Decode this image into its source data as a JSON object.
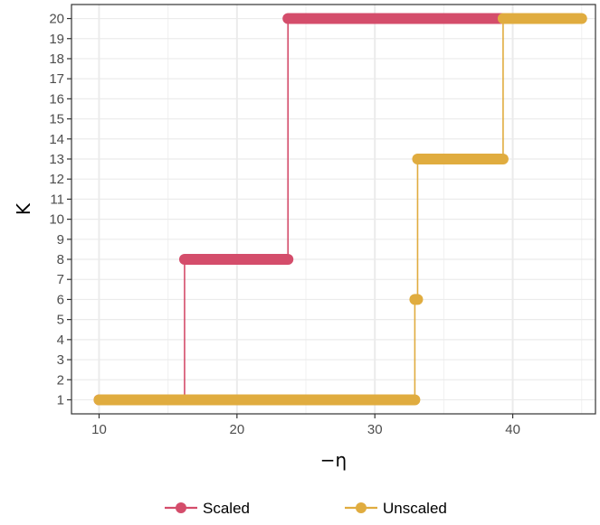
{
  "chart_data": {
    "type": "line",
    "step": true,
    "xlabel": "−η",
    "ylabel": "K",
    "xlim": [
      8,
      46
    ],
    "ylim": [
      0.3,
      20.7
    ],
    "xticks": [
      "10",
      "20",
      "30",
      "40"
    ],
    "yticks": [
      "1",
      "2",
      "3",
      "4",
      "5",
      "6",
      "7",
      "8",
      "9",
      "10",
      "11",
      "12",
      "13",
      "14",
      "15",
      "16",
      "17",
      "18",
      "19",
      "20"
    ],
    "grid": true,
    "legend_position": "bottom",
    "series": [
      {
        "name": "Scaled",
        "color": "#d44d6b",
        "segments": [
          {
            "x_start": 10,
            "x_end": 16.2,
            "y": 1
          },
          {
            "x_start": 16.2,
            "x_end": 23.7,
            "y": 8
          },
          {
            "x_start": 23.7,
            "x_end": 39.3,
            "y": 20
          }
        ]
      },
      {
        "name": "Unscaled",
        "color": "#e0ac3f",
        "segments": [
          {
            "x_start": 10,
            "x_end": 32.9,
            "y": 1
          },
          {
            "x_start": 32.9,
            "x_end": 33.1,
            "y": 6
          },
          {
            "x_start": 33.1,
            "x_end": 39.3,
            "y": 13
          },
          {
            "x_start": 39.3,
            "x_end": 45,
            "y": 20
          }
        ]
      }
    ]
  }
}
